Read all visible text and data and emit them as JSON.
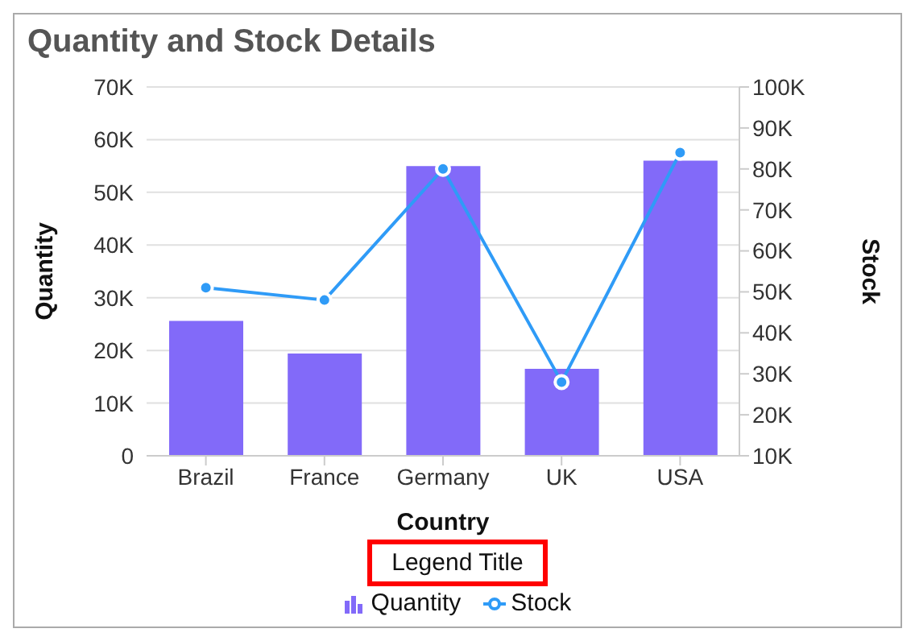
{
  "chart_data": {
    "type": "bar",
    "title": "Quantity and Stock Details",
    "xlabel": "Country",
    "ylabel": "Quantity",
    "y2label": "Stock",
    "legend_title": "Legend Title",
    "categories": [
      "Brazil",
      "France",
      "Germany",
      "UK",
      "USA"
    ],
    "series": [
      {
        "name": "Quantity",
        "color": "#826af9",
        "values": [
          25600,
          19400,
          55000,
          16500,
          56000
        ]
      },
      {
        "name": "Stock",
        "type": "line",
        "axis": "y2",
        "color": "#2f9bf7",
        "marker": "circle",
        "values": [
          51000,
          48000,
          80000,
          28000,
          84000
        ]
      }
    ],
    "ylim": [
      0,
      70000
    ],
    "yticks": [
      {
        "value": 0,
        "label": "0"
      },
      {
        "value": 10000,
        "label": "10K"
      },
      {
        "value": 20000,
        "label": "20K"
      },
      {
        "value": 30000,
        "label": "30K"
      },
      {
        "value": 40000,
        "label": "40K"
      },
      {
        "value": 50000,
        "label": "50K"
      },
      {
        "value": 60000,
        "label": "60K"
      },
      {
        "value": 70000,
        "label": "70K"
      }
    ],
    "y2lim": [
      10000,
      100000
    ],
    "y2ticks": [
      {
        "value": 10000,
        "label": "10K"
      },
      {
        "value": 20000,
        "label": "20K"
      },
      {
        "value": 30000,
        "label": "30K"
      },
      {
        "value": 40000,
        "label": "40K"
      },
      {
        "value": 50000,
        "label": "50K"
      },
      {
        "value": 60000,
        "label": "60K"
      },
      {
        "value": 70000,
        "label": "70K"
      },
      {
        "value": 80000,
        "label": "80K"
      },
      {
        "value": 90000,
        "label": "90K"
      },
      {
        "value": 100000,
        "label": "100K"
      }
    ],
    "grid": "y",
    "legend": "bottom"
  }
}
